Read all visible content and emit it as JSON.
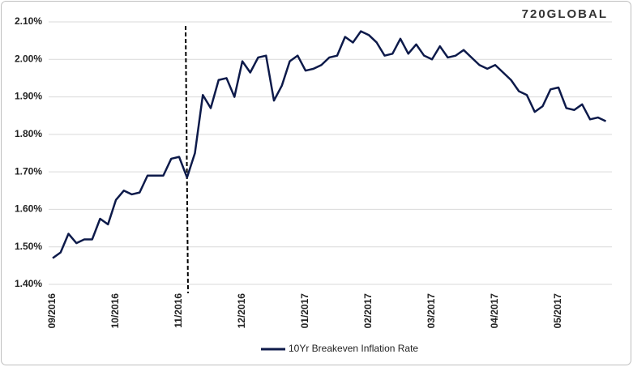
{
  "chart_data": {
    "type": "line",
    "logo": "720GLOBAL",
    "categories": [
      "09/2016",
      null,
      null,
      null,
      null,
      null,
      null,
      null,
      "10/2016",
      null,
      null,
      null,
      null,
      null,
      null,
      null,
      "11/2016",
      null,
      null,
      null,
      null,
      null,
      null,
      null,
      "12/2016",
      null,
      null,
      null,
      null,
      null,
      null,
      null,
      "01/2017",
      null,
      null,
      null,
      null,
      null,
      null,
      null,
      "02/2017",
      null,
      null,
      null,
      null,
      null,
      null,
      null,
      "03/2017",
      null,
      null,
      null,
      null,
      null,
      null,
      null,
      "04/2017",
      null,
      null,
      null,
      null,
      null,
      null,
      null,
      "05/2017",
      null,
      null,
      null,
      null,
      null,
      null
    ],
    "series": [
      {
        "name": "10Yr Breakeven Inflation Rate",
        "color": "#0d1a4a",
        "values": [
          1.47,
          1.485,
          1.535,
          1.51,
          1.52,
          1.52,
          1.575,
          1.56,
          1.625,
          1.65,
          1.64,
          1.645,
          1.69,
          1.69,
          1.69,
          1.735,
          1.74,
          1.685,
          1.75,
          1.905,
          1.87,
          1.945,
          1.95,
          1.9,
          1.995,
          1.965,
          2.005,
          2.01,
          1.89,
          1.93,
          1.995,
          2.01,
          1.97,
          1.975,
          1.985,
          2.005,
          2.01,
          2.06,
          2.045,
          2.075,
          2.065,
          2.045,
          2.01,
          2.015,
          2.055,
          2.015,
          2.04,
          2.01,
          2.0,
          2.035,
          2.005,
          2.01,
          2.025,
          2.005,
          1.985,
          1.975,
          1.985,
          1.965,
          1.945,
          1.915,
          1.905,
          1.86,
          1.875,
          1.92,
          1.925,
          1.87,
          1.865,
          1.88,
          1.84,
          1.845,
          1.835
        ]
      }
    ],
    "ylim": [
      1.4,
      2.1
    ],
    "yticks": [
      {
        "value": 1.4,
        "label": "1.40%"
      },
      {
        "value": 1.5,
        "label": "1.50%"
      },
      {
        "value": 1.6,
        "label": "1.60%"
      },
      {
        "value": 1.7,
        "label": "1.70%"
      },
      {
        "value": 1.8,
        "label": "1.80%"
      },
      {
        "value": 1.9,
        "label": "1.90%"
      },
      {
        "value": 2.0,
        "label": "2.00%"
      },
      {
        "value": 2.1,
        "label": "2.10%"
      }
    ],
    "grid": true,
    "legend": "bottom"
  }
}
